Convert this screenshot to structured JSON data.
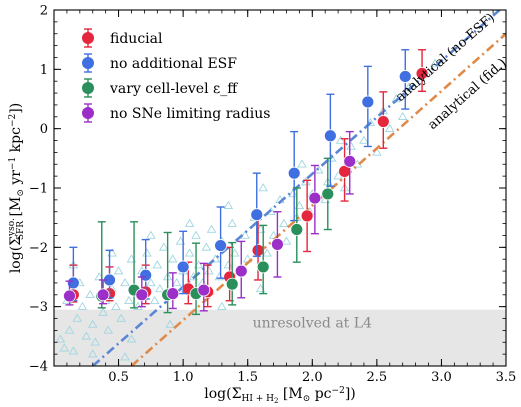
{
  "chart_data": {
    "type": "scatter",
    "xlabel": "log(Σ_{HI+H2} [M⊙ pc⁻²])",
    "ylabel": "log(Σ_SFR^yso. [M⊙ yr⁻¹ kpc⁻²])",
    "xlim": [
      0.0,
      3.5
    ],
    "ylim": [
      -4,
      2
    ],
    "xticks": [
      0.5,
      1.0,
      1.5,
      2.0,
      2.5,
      3.0,
      3.5
    ],
    "xtick_labels": [
      "0.5",
      "1.0",
      "1.5",
      "2.0",
      "2.5",
      "3.0",
      "3.5"
    ],
    "yticks": [
      -4,
      -3,
      -2,
      -1,
      0,
      1,
      2
    ],
    "ytick_labels": [
      "−4",
      "−3",
      "−2",
      "−1",
      "0",
      "1",
      "2"
    ],
    "legend_position": "top-left",
    "shaded_region": {
      "y_from": -4,
      "y_to": -3.05,
      "label": "unresolved at L4",
      "color": "#e6e6e6"
    },
    "reference_lines": [
      {
        "label": "analytical (no-ESF)",
        "color": "#5b86d6",
        "points": [
          [
            0.3,
            -4.0
          ],
          [
            3.45,
            2.0
          ]
        ]
      },
      {
        "label": "analytical (fid.)",
        "color": "#e08a4a",
        "points": [
          [
            0.6,
            -4.0
          ],
          [
            3.5,
            1.6
          ]
        ]
      }
    ],
    "background_points": {
      "marker": "triangle",
      "color": "#9fd6e0",
      "points": [
        [
          0.05,
          -3.55
        ],
        [
          0.08,
          -3.7
        ],
        [
          0.1,
          -2.9
        ],
        [
          0.12,
          -3.4
        ],
        [
          0.15,
          -3.75
        ],
        [
          0.18,
          -3.2
        ],
        [
          0.2,
          -2.6
        ],
        [
          0.22,
          -3.0
        ],
        [
          0.25,
          -3.5
        ],
        [
          0.28,
          -2.8
        ],
        [
          0.3,
          -3.3
        ],
        [
          0.32,
          -3.6
        ],
        [
          0.35,
          -2.5
        ],
        [
          0.38,
          -3.1
        ],
        [
          0.4,
          -2.9
        ],
        [
          0.42,
          -3.4
        ],
        [
          0.45,
          -2.7
        ],
        [
          0.48,
          -3.0
        ],
        [
          0.5,
          -2.4
        ],
        [
          0.52,
          -3.2
        ],
        [
          0.55,
          -2.6
        ],
        [
          0.58,
          -2.9
        ],
        [
          0.6,
          -2.2
        ],
        [
          0.62,
          -2.7
        ],
        [
          0.65,
          -3.0
        ],
        [
          0.68,
          -2.4
        ],
        [
          0.7,
          -2.8
        ],
        [
          0.72,
          -2.1
        ],
        [
          0.75,
          -2.6
        ],
        [
          0.78,
          -2.9
        ],
        [
          0.8,
          -2.3
        ],
        [
          0.82,
          -2.7
        ],
        [
          0.85,
          -2.0
        ],
        [
          0.88,
          -2.5
        ],
        [
          0.9,
          -2.8
        ],
        [
          0.92,
          -2.2
        ],
        [
          0.95,
          -2.6
        ],
        [
          0.98,
          -1.9
        ],
        [
          1.0,
          -2.4
        ],
        [
          1.02,
          -2.7
        ],
        [
          1.05,
          -2.1
        ],
        [
          1.08,
          -2.5
        ],
        [
          1.1,
          -1.8
        ],
        [
          1.12,
          -2.3
        ],
        [
          1.15,
          -2.6
        ],
        [
          1.18,
          -2.0
        ],
        [
          1.2,
          -2.4
        ],
        [
          1.22,
          -1.7
        ],
        [
          1.25,
          -2.2
        ],
        [
          1.28,
          -2.5
        ],
        [
          1.3,
          -1.9
        ],
        [
          1.35,
          -2.3
        ],
        [
          1.38,
          -1.6
        ],
        [
          1.4,
          -2.1
        ],
        [
          1.45,
          -2.4
        ],
        [
          1.48,
          -1.8
        ],
        [
          1.5,
          -2.2
        ],
        [
          1.55,
          -1.5
        ],
        [
          1.58,
          -2.0
        ],
        [
          1.6,
          -1.7
        ],
        [
          1.65,
          -2.1
        ],
        [
          1.68,
          -1.4
        ],
        [
          1.7,
          -1.8
        ],
        [
          1.75,
          -1.2
        ],
        [
          1.78,
          -1.6
        ],
        [
          1.8,
          -1.9
        ],
        [
          1.85,
          -1.1
        ],
        [
          1.88,
          -1.5
        ],
        [
          1.9,
          -1.3
        ],
        [
          1.95,
          -0.9
        ],
        [
          1.98,
          -1.4
        ],
        [
          2.0,
          -1.1
        ],
        [
          2.05,
          -0.7
        ],
        [
          2.1,
          -1.2
        ],
        [
          2.12,
          -0.9
        ],
        [
          2.15,
          -0.5
        ],
        [
          2.2,
          -0.8
        ],
        [
          2.25,
          -1.0
        ],
        [
          2.3,
          -0.3
        ],
        [
          2.35,
          -0.6
        ],
        [
          2.4,
          -0.2
        ],
        [
          2.45,
          0.1
        ],
        [
          2.5,
          -0.4
        ],
        [
          2.55,
          0.3
        ],
        [
          2.6,
          0.0
        ],
        [
          2.65,
          0.5
        ],
        [
          2.7,
          0.2
        ],
        [
          2.75,
          0.7
        ],
        [
          2.85,
          0.9
        ],
        [
          2.95,
          1.1
        ],
        [
          0.3,
          -3.8
        ],
        [
          0.6,
          -3.55
        ],
        [
          0.9,
          -3.3
        ],
        [
          1.3,
          -3.0
        ],
        [
          1.6,
          -2.7
        ],
        [
          0.15,
          -2.3
        ],
        [
          0.45,
          -2.1
        ],
        [
          0.75,
          -1.8
        ],
        [
          1.05,
          -1.6
        ],
        [
          1.35,
          -1.3
        ],
        [
          1.62,
          -1.0
        ],
        [
          1.92,
          -0.6
        ],
        [
          2.22,
          -0.2
        ],
        [
          0.55,
          -3.85
        ]
      ]
    },
    "series": [
      {
        "name": "fiducial",
        "color": "#e4273c",
        "x": [
          0.15,
          0.43,
          0.71,
          1.04,
          1.19,
          1.36,
          1.58,
          1.96,
          2.25,
          2.55,
          2.85
        ],
        "y": [
          -2.8,
          -2.78,
          -2.75,
          -2.7,
          -2.75,
          -2.5,
          -2.05,
          -1.47,
          -0.72,
          0.12,
          0.93
        ],
        "err_lo": [
          0.12,
          0.12,
          0.2,
          0.25,
          0.25,
          0.4,
          0.5,
          0.6,
          0.5,
          0.45,
          0.3
        ],
        "err_hi": [
          0.5,
          0.45,
          0.45,
          0.45,
          0.45,
          0.5,
          0.6,
          0.6,
          0.55,
          0.5,
          0.4
        ]
      },
      {
        "name": "no additional ESF",
        "color": "#3f6fe0",
        "x": [
          0.15,
          0.43,
          0.71,
          1.0,
          1.29,
          1.57,
          1.86,
          2.14,
          2.43,
          2.72
        ],
        "y": [
          -2.6,
          -2.55,
          -2.47,
          -2.33,
          -1.97,
          -1.45,
          -0.75,
          -0.12,
          0.45,
          0.88
        ],
        "err_lo": [
          0.3,
          0.3,
          0.4,
          0.45,
          0.55,
          0.7,
          0.8,
          0.85,
          0.75,
          0.55
        ],
        "err_hi": [
          0.6,
          0.5,
          0.6,
          0.6,
          0.65,
          0.7,
          0.7,
          0.7,
          0.6,
          0.45
        ]
      },
      {
        "name": "vary cell-level ε_ff",
        "color": "#2a8f5a",
        "x": [
          0.37,
          0.62,
          0.88,
          1.1,
          1.38,
          1.62,
          1.88,
          2.12
        ],
        "y": [
          -2.82,
          -2.72,
          -2.8,
          -2.78,
          -2.62,
          -2.33,
          -1.7,
          -1.1
        ],
        "err_lo": [
          0.2,
          0.3,
          0.3,
          0.35,
          0.35,
          0.45,
          0.55,
          0.6
        ],
        "err_hi": [
          1.25,
          1.15,
          1.05,
          0.85,
          0.7,
          0.7,
          0.7,
          0.6
        ]
      },
      {
        "name": "no SNe limiting radius",
        "color": "#9b2fc8",
        "x": [
          0.12,
          0.38,
          0.68,
          0.92,
          1.16,
          1.45,
          1.73,
          2.02,
          2.29
        ],
        "y": [
          -2.82,
          -2.8,
          -2.8,
          -2.78,
          -2.72,
          -2.4,
          -1.95,
          -1.17,
          -0.55
        ],
        "err_lo": [
          0.15,
          0.15,
          0.2,
          0.25,
          0.35,
          0.45,
          0.55,
          0.6,
          0.55
        ],
        "err_hi": [
          0.25,
          0.25,
          0.3,
          0.35,
          0.45,
          0.5,
          0.55,
          0.55,
          0.5
        ]
      }
    ]
  }
}
